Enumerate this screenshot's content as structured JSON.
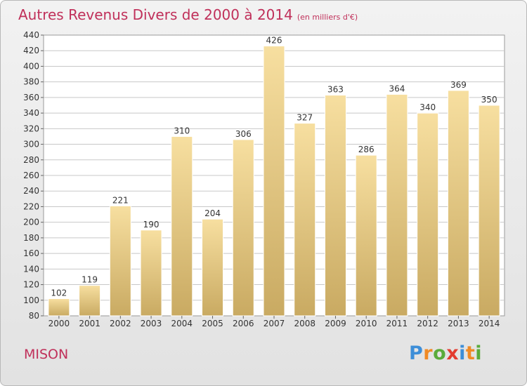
{
  "header": {
    "title": "Autres Revenus Divers de 2000 à 2014",
    "unit": "(en milliers d'€)"
  },
  "footer": {
    "place": "MISON",
    "logo": [
      "P",
      "r",
      "o",
      "x",
      "i",
      "t",
      "i"
    ],
    "logo_colors": [
      "#3d8ed8",
      "#f08a24",
      "#5aab3a",
      "#e33b2f",
      "#3d8ed8",
      "#f08a24",
      "#5aab3a"
    ]
  },
  "colors": {
    "title": "#c0305a",
    "bar_light": "#f7dfa0",
    "bar_dark": "#c9aa62",
    "grid": "#c8c8c8"
  },
  "chart_data": {
    "type": "bar",
    "title": "Autres Revenus Divers de 2000 à 2014",
    "categories": [
      "2000",
      "2001",
      "2002",
      "2003",
      "2004",
      "2005",
      "2006",
      "2007",
      "2008",
      "2009",
      "2010",
      "2011",
      "2012",
      "2013",
      "2014"
    ],
    "values": [
      102,
      119,
      221,
      190,
      310,
      204,
      306,
      426,
      327,
      363,
      286,
      364,
      340,
      369,
      350
    ],
    "ylim": [
      80,
      440
    ],
    "yticks": [
      80,
      100,
      120,
      140,
      160,
      180,
      200,
      220,
      240,
      260,
      280,
      300,
      320,
      340,
      360,
      380,
      400,
      420,
      440
    ],
    "grid": true,
    "xlabel": "",
    "ylabel": ""
  }
}
